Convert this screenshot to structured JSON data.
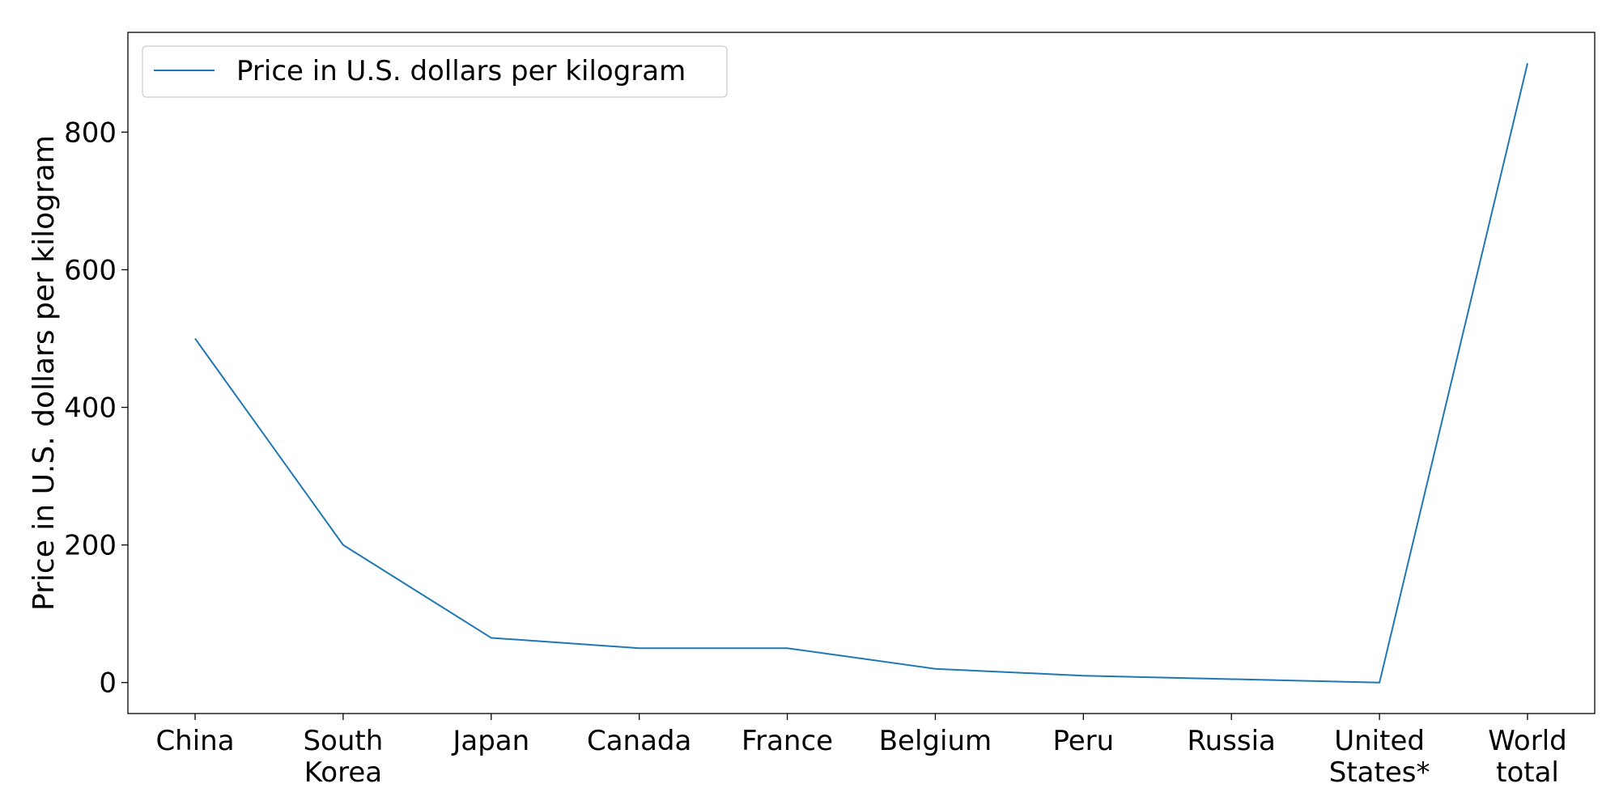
{
  "chart_data": {
    "type": "line",
    "title": "",
    "xlabel": "",
    "ylabel": "Price in U.S. dollars per kilogram",
    "categories": [
      [
        "China"
      ],
      [
        "South",
        "Korea"
      ],
      [
        "Japan"
      ],
      [
        "Canada"
      ],
      [
        "France"
      ],
      [
        "Belgium"
      ],
      [
        "Peru"
      ],
      [
        "Russia"
      ],
      [
        "United",
        "States*"
      ],
      [
        "World",
        "total"
      ]
    ],
    "series": [
      {
        "name": "Price in U.S. dollars per kilogram",
        "color": "#1f77b4",
        "values": [
          500,
          200,
          65,
          50,
          50,
          20,
          10,
          5,
          0,
          900
        ]
      }
    ],
    "yticks": [
      "0",
      "200",
      "400",
      "600",
      "800"
    ],
    "ylim": [
      -45,
      945
    ],
    "grid": false,
    "legend": "top-left"
  }
}
